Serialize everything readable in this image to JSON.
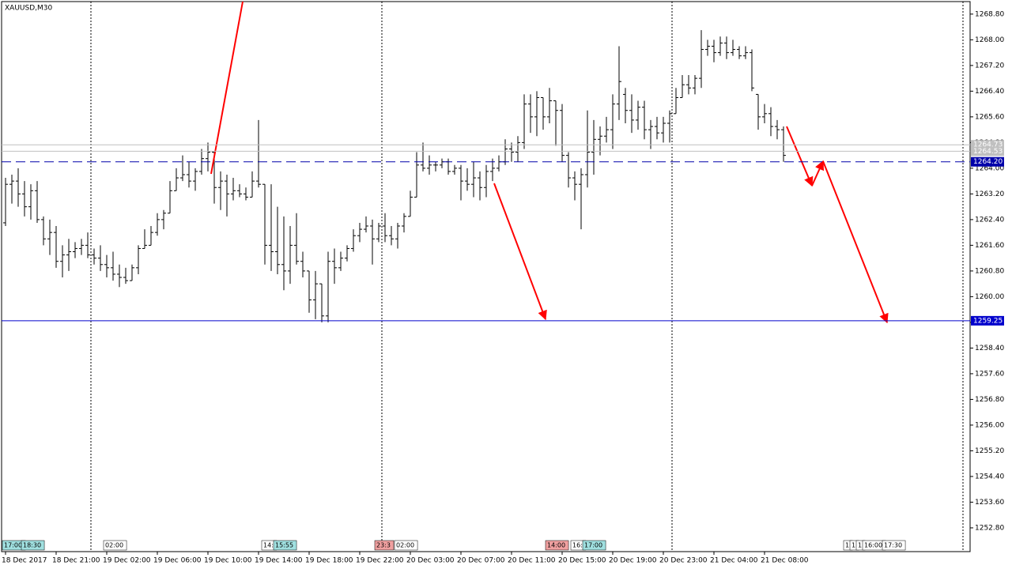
{
  "chart_data": {
    "type": "ohlc",
    "title": "XAUUSD,M30",
    "categories": [
      "18 Dec 2017",
      null,
      null,
      null,
      null,
      null,
      null,
      null,
      "18 Dec 21:00",
      null,
      null,
      null,
      null,
      null,
      null,
      null,
      "19 Dec 02:00",
      null,
      null,
      null,
      null,
      null,
      null,
      null,
      "19 Dec 06:00",
      null,
      null,
      null,
      null,
      null,
      null,
      null,
      "19 Dec 10:00",
      null,
      null,
      null,
      null,
      null,
      null,
      null,
      "19 Dec 14:00",
      null,
      null,
      null,
      null,
      null,
      null,
      null,
      "19 Dec 18:00",
      null,
      null,
      null,
      null,
      null,
      null,
      null,
      "19 Dec 22:00",
      null,
      null,
      null,
      null,
      null,
      null,
      null,
      "20 Dec 03:00",
      null,
      null,
      null,
      null,
      null,
      null,
      null,
      "20 Dec 07:00",
      null,
      null,
      null,
      null,
      null,
      null,
      null,
      "20 Dec 11:00",
      null,
      null,
      null,
      null,
      null,
      null,
      null,
      "20 Dec 15:00",
      null,
      null,
      null,
      null,
      null,
      null,
      null,
      "20 Dec 19:00",
      null,
      null,
      null,
      null,
      null,
      null,
      null,
      "20 Dec 23:00",
      null,
      null,
      null,
      null,
      null,
      null,
      null,
      "21 Dec 04:00",
      null,
      null,
      null,
      null,
      null,
      null,
      null,
      "21 Dec 08:00",
      null,
      null,
      null
    ],
    "values": [
      [
        1262.3,
        1263.7,
        1262.2,
        1263.5
      ],
      [
        1263.5,
        1263.8,
        1262.9,
        1263.6
      ],
      [
        1263.6,
        1264.0,
        1262.8,
        1263.2
      ],
      [
        1263.2,
        1263.6,
        1262.5,
        1262.8
      ],
      [
        1262.8,
        1263.5,
        1262.4,
        1263.3
      ],
      [
        1263.3,
        1263.6,
        1262.3,
        1262.4
      ],
      [
        1262.4,
        1262.5,
        1261.6,
        1261.8
      ],
      [
        1261.8,
        1262.4,
        1261.3,
        1262.0
      ],
      [
        1262.0,
        1262.2,
        1260.9,
        1261.1
      ],
      [
        1261.1,
        1261.6,
        1260.6,
        1261.3
      ],
      [
        1261.3,
        1261.8,
        1260.8,
        1261.4
      ],
      [
        1261.4,
        1261.7,
        1261.2,
        1261.5
      ],
      [
        1261.5,
        1261.8,
        1261.3,
        1261.6
      ],
      [
        1261.6,
        1262.0,
        1261.2,
        1261.3
      ],
      [
        1261.3,
        1261.5,
        1261.0,
        1261.2
      ],
      [
        1261.2,
        1261.6,
        1260.8,
        1261.0
      ],
      [
        1261.0,
        1261.3,
        1260.6,
        1260.9
      ],
      [
        1260.9,
        1261.4,
        1260.5,
        1260.7
      ],
      [
        1260.7,
        1261.0,
        1260.3,
        1260.6
      ],
      [
        1260.6,
        1260.9,
        1260.4,
        1260.5
      ],
      [
        1260.5,
        1261.0,
        1260.5,
        1260.9
      ],
      [
        1260.9,
        1261.6,
        1260.7,
        1261.5
      ],
      [
        1261.5,
        1262.1,
        1261.5,
        1261.6
      ],
      [
        1261.6,
        1262.2,
        1261.6,
        1262.0
      ],
      [
        1262.0,
        1262.6,
        1261.9,
        1262.4
      ],
      [
        1262.4,
        1262.7,
        1262.1,
        1262.6
      ],
      [
        1262.6,
        1263.6,
        1262.6,
        1263.3
      ],
      [
        1263.3,
        1264.0,
        1263.3,
        1263.7
      ],
      [
        1263.7,
        1264.4,
        1263.6,
        1263.8
      ],
      [
        1263.8,
        1264.2,
        1263.4,
        1263.6
      ],
      [
        1263.6,
        1264.0,
        1263.3,
        1263.9
      ],
      [
        1263.9,
        1264.6,
        1263.8,
        1264.3
      ],
      [
        1264.3,
        1264.8,
        1263.9,
        1264.5
      ],
      [
        1264.5,
        1264.5,
        1262.9,
        1263.4
      ],
      [
        1263.4,
        1263.9,
        1262.7,
        1263.6
      ],
      [
        1263.6,
        1263.8,
        1262.5,
        1263.2
      ],
      [
        1263.2,
        1263.7,
        1263.0,
        1263.3
      ],
      [
        1263.3,
        1263.5,
        1263.1,
        1263.2
      ],
      [
        1263.2,
        1263.4,
        1263.0,
        1263.1
      ],
      [
        1263.1,
        1263.9,
        1263.1,
        1263.6
      ],
      [
        1263.6,
        1265.5,
        1263.4,
        1263.5
      ],
      [
        1263.5,
        1263.5,
        1261.0,
        1261.6
      ],
      [
        1261.6,
        1263.5,
        1260.8,
        1261.4
      ],
      [
        1261.4,
        1262.8,
        1260.7,
        1261.0
      ],
      [
        1261.0,
        1262.5,
        1260.2,
        1260.8
      ],
      [
        1260.8,
        1262.2,
        1260.4,
        1261.6
      ],
      [
        1261.6,
        1262.6,
        1261.0,
        1261.1
      ],
      [
        1261.1,
        1261.4,
        1260.6,
        1260.8
      ],
      [
        1260.8,
        1260.8,
        1259.5,
        1259.9
      ],
      [
        1259.9,
        1260.8,
        1259.3,
        1260.4
      ],
      [
        1260.4,
        1260.4,
        1259.2,
        1259.4
      ],
      [
        1259.4,
        1261.4,
        1259.2,
        1261.1
      ],
      [
        1261.1,
        1261.5,
        1260.4,
        1260.9
      ],
      [
        1260.9,
        1261.4,
        1260.8,
        1261.2
      ],
      [
        1261.2,
        1261.6,
        1261.1,
        1261.5
      ],
      [
        1261.5,
        1262.1,
        1261.4,
        1261.9
      ],
      [
        1261.9,
        1262.3,
        1261.7,
        1262.1
      ],
      [
        1262.1,
        1262.5,
        1262.0,
        1262.2
      ],
      [
        1262.2,
        1262.4,
        1261.0,
        1261.8
      ],
      [
        1261.8,
        1262.3,
        1261.7,
        1262.2
      ],
      [
        1262.2,
        1262.6,
        1261.7,
        1261.9
      ],
      [
        1261.9,
        1262.2,
        1261.6,
        1261.8
      ],
      [
        1261.8,
        1262.3,
        1261.5,
        1262.2
      ],
      [
        1262.2,
        1262.6,
        1262.0,
        1262.5
      ],
      [
        1262.5,
        1263.3,
        1262.5,
        1263.1
      ],
      [
        1263.1,
        1264.5,
        1263.1,
        1264.1
      ],
      [
        1264.1,
        1264.8,
        1263.9,
        1264.0
      ],
      [
        1264.0,
        1264.4,
        1263.8,
        1264.1
      ],
      [
        1264.1,
        1264.2,
        1263.9,
        1264.1
      ],
      [
        1264.1,
        1264.3,
        1264.0,
        1264.2
      ],
      [
        1264.2,
        1264.3,
        1263.8,
        1263.9
      ],
      [
        1263.9,
        1264.1,
        1263.8,
        1264.0
      ],
      [
        1264.0,
        1264.1,
        1263.0,
        1263.6
      ],
      [
        1263.6,
        1264.0,
        1263.3,
        1263.5
      ],
      [
        1263.5,
        1264.2,
        1263.1,
        1263.7
      ],
      [
        1263.7,
        1263.9,
        1263.0,
        1263.4
      ],
      [
        1263.4,
        1264.1,
        1263.1,
        1263.9
      ],
      [
        1263.9,
        1264.3,
        1263.6,
        1264.0
      ],
      [
        1264.0,
        1264.4,
        1263.9,
        1264.2
      ],
      [
        1264.2,
        1264.9,
        1264.1,
        1264.6
      ],
      [
        1264.6,
        1264.8,
        1264.2,
        1264.5
      ],
      [
        1264.5,
        1265.0,
        1264.2,
        1264.8
      ],
      [
        1264.8,
        1266.3,
        1264.6,
        1266.0
      ],
      [
        1266.0,
        1266.3,
        1265.1,
        1265.6
      ],
      [
        1265.6,
        1266.4,
        1265.0,
        1266.2
      ],
      [
        1266.2,
        1266.2,
        1265.2,
        1265.6
      ],
      [
        1265.6,
        1266.5,
        1265.4,
        1266.1
      ],
      [
        1266.1,
        1266.1,
        1264.7,
        1265.8
      ],
      [
        1265.8,
        1266.0,
        1264.2,
        1264.4
      ],
      [
        1264.4,
        1264.5,
        1263.4,
        1263.7
      ],
      [
        1263.7,
        1263.9,
        1263.0,
        1263.5
      ],
      [
        1263.5,
        1264.0,
        1262.1,
        1263.8
      ],
      [
        1263.8,
        1265.8,
        1263.4,
        1264.5
      ],
      [
        1264.5,
        1265.5,
        1263.8,
        1264.9
      ],
      [
        1264.9,
        1265.3,
        1264.4,
        1265.0
      ],
      [
        1265.0,
        1265.6,
        1264.8,
        1265.2
      ],
      [
        1265.2,
        1266.3,
        1264.6,
        1266.0
      ],
      [
        1266.0,
        1267.8,
        1265.5,
        1266.7
      ],
      [
        1266.3,
        1266.5,
        1265.4,
        1265.8
      ],
      [
        1265.8,
        1266.3,
        1265.1,
        1265.5
      ],
      [
        1265.5,
        1266.1,
        1265.2,
        1265.9
      ],
      [
        1265.9,
        1266.1,
        1264.9,
        1265.2
      ],
      [
        1265.2,
        1265.5,
        1264.6,
        1265.3
      ],
      [
        1265.3,
        1265.6,
        1264.9,
        1265.1
      ],
      [
        1265.1,
        1265.6,
        1264.8,
        1265.4
      ],
      [
        1265.4,
        1265.8,
        1264.8,
        1265.7
      ],
      [
        1265.7,
        1266.5,
        1265.7,
        1266.2
      ],
      [
        1266.2,
        1266.9,
        1266.2,
        1266.6
      ],
      [
        1266.6,
        1266.9,
        1266.3,
        1266.5
      ],
      [
        1266.5,
        1266.9,
        1266.3,
        1266.8
      ],
      [
        1266.8,
        1268.3,
        1266.5,
        1267.7
      ],
      [
        1267.7,
        1268.0,
        1267.5,
        1267.8
      ],
      [
        1267.8,
        1268.0,
        1267.3,
        1267.6
      ],
      [
        1267.6,
        1268.1,
        1267.5,
        1267.9
      ],
      [
        1267.9,
        1268.1,
        1267.4,
        1267.6
      ],
      [
        1267.6,
        1268.0,
        1267.5,
        1267.7
      ],
      [
        1267.7,
        1267.8,
        1267.4,
        1267.5
      ],
      [
        1267.5,
        1267.8,
        1267.4,
        1267.6
      ],
      [
        1267.6,
        1267.7,
        1266.4,
        1266.5
      ],
      [
        1266.3,
        1266.3,
        1265.2,
        1265.6
      ],
      [
        1265.6,
        1266.0,
        1265.4,
        1265.7
      ],
      [
        1265.7,
        1265.9,
        1265.0,
        1265.3
      ],
      [
        1265.3,
        1265.5,
        1264.9,
        1265.2
      ],
      [
        1265.2,
        1265.3,
        1264.2,
        1264.4
      ]
    ],
    "color": "#000000",
    "ylim": [
      1252.06,
      1269.19
    ],
    "yticks": [
      {
        "value": 1252.8,
        "label": "1252.80"
      },
      {
        "value": 1253.6,
        "label": "1253.60"
      },
      {
        "value": 1254.4,
        "label": "1254.40"
      },
      {
        "value": 1255.2,
        "label": "1255.20"
      },
      {
        "value": 1256,
        "label": "1256.00"
      },
      {
        "value": 1256.8,
        "label": "1256.80"
      },
      {
        "value": 1257.6,
        "label": "1257.60"
      },
      {
        "value": 1258.4,
        "label": "1258.40"
      },
      {
        "value": 1259.2,
        "label": "1259.20"
      },
      {
        "value": 1260,
        "label": "1260.00"
      },
      {
        "value": 1260.8,
        "label": "1260.80"
      },
      {
        "value": 1261.6,
        "label": "1261.60"
      },
      {
        "value": 1262.4,
        "label": "1262.40"
      },
      {
        "value": 1263.2,
        "label": "1263.20"
      },
      {
        "value": 1264,
        "label": "1264.00"
      },
      {
        "value": 1264.8,
        "label": "1264.80"
      },
      {
        "value": 1265.6,
        "label": "1265.60"
      },
      {
        "value": 1266.4,
        "label": "1266.40"
      },
      {
        "value": 1267.2,
        "label": "1267.20"
      },
      {
        "value": 1268,
        "label": "1268.00"
      },
      {
        "value": 1268.8,
        "label": "1268.80"
      }
    ],
    "levels": [
      {
        "value": 1264.73,
        "label": "1264.73",
        "color": "#c0c0c0",
        "style": "solid"
      },
      {
        "value": 1264.53,
        "label": "1264.53",
        "color": "#c0c0c0",
        "style": "solid"
      },
      {
        "value": 1264.2,
        "label": "1264.20",
        "color": "#0000aa",
        "style": "dashed"
      },
      {
        "value": 1259.25,
        "label": "1259.25",
        "color": "#0000cc",
        "style": "solid"
      }
    ],
    "time_markers": [
      "17:00",
      "18:30",
      "02:00",
      "14:",
      "15:55",
      "23:3",
      "02:00",
      "14:00",
      "16:",
      "17:00",
      "1",
      "1",
      "1",
      "16:00",
      "17:30"
    ]
  }
}
